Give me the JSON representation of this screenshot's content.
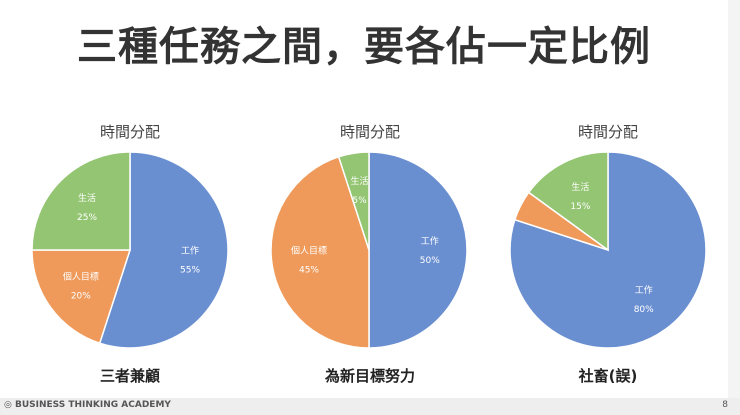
{
  "title": "三種任務之間，要各佔一定比例",
  "colors": {
    "work": "#6a8fd0",
    "personal": "#ef9a5a",
    "life": "#93c572"
  },
  "chart_data": [
    {
      "type": "pie",
      "title": "時間分配",
      "caption": "三者兼顧",
      "slices": [
        {
          "label": "工作",
          "value": 55,
          "pct": "55%"
        },
        {
          "label": "個人目標",
          "value": 20,
          "pct": "20%"
        },
        {
          "label": "生活",
          "value": 25,
          "pct": "25%"
        }
      ]
    },
    {
      "type": "pie",
      "title": "時間分配",
      "caption": "為新目標努力",
      "slices": [
        {
          "label": "工作",
          "value": 50,
          "pct": "50%"
        },
        {
          "label": "個人目標",
          "value": 45,
          "pct": "45%"
        },
        {
          "label": "生活",
          "value": 5,
          "pct": "5%"
        }
      ]
    },
    {
      "type": "pie",
      "title": "時間分配",
      "caption": "社畜(誤)",
      "slices": [
        {
          "label": "工作",
          "value": 80,
          "pct": "80%"
        },
        {
          "label": "個人目標",
          "value": 5,
          "pct": "",
          "hide_label": true
        },
        {
          "label": "生活",
          "value": 15,
          "pct": "15%"
        }
      ]
    }
  ],
  "footer": {
    "brand": "◎ BUSINESS THINKING ACADEMY",
    "page": "8"
  }
}
